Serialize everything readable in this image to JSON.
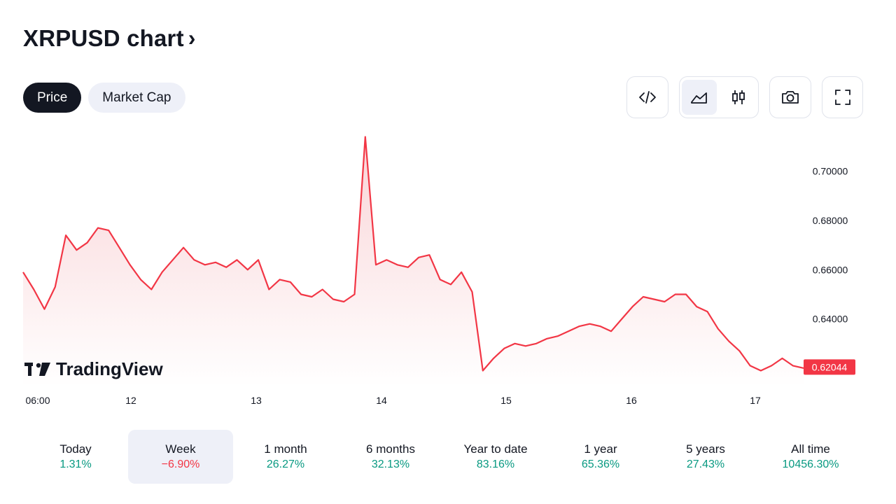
{
  "header": {
    "title": "XRPUSD chart",
    "chevron": "›"
  },
  "tabs": [
    {
      "label": "Price",
      "active": true
    },
    {
      "label": "Market Cap",
      "active": false
    }
  ],
  "toolbar": {
    "embed_icon": "code-icon",
    "area_icon": "area-chart-icon",
    "candles_icon": "candlestick-icon",
    "snapshot_icon": "camera-icon",
    "fullscreen_icon": "fullscreen-icon",
    "selected_style": "area"
  },
  "watermark": {
    "text": "TradingView"
  },
  "colors": {
    "line": "#f23645",
    "fill_top": "#f9d4d7",
    "fill_bottom": "#ffffff",
    "accent_up": "#089981",
    "accent_down": "#f23645"
  },
  "chart_data": {
    "type": "area",
    "symbol": "XRPUSD",
    "x_tick_labels": [
      "06:00",
      "12",
      "13",
      "14",
      "15",
      "16",
      "17"
    ],
    "y_tick_labels": [
      "0.70000",
      "0.68000",
      "0.66000",
      "0.64000"
    ],
    "ylim": [
      0.616,
      0.715
    ],
    "last_price": "0.62044",
    "grid": false,
    "series": [
      {
        "points": [
          [
            "06:00",
            0.659
          ],
          [
            "07:00",
            0.652
          ],
          [
            "08:00",
            0.644
          ],
          [
            "09:00",
            0.653
          ],
          [
            "10:00",
            0.674
          ],
          [
            "11:00",
            0.668
          ],
          [
            "12:00",
            0.671
          ],
          [
            "13:00",
            0.677
          ],
          [
            "14:00",
            0.676
          ],
          [
            "15:00",
            0.669
          ],
          [
            "16:00",
            0.662
          ],
          [
            "17:00",
            0.656
          ],
          [
            "18:00",
            0.652
          ],
          [
            "19:00",
            0.659
          ],
          [
            "20:00",
            0.664
          ],
          [
            "21:00",
            0.669
          ],
          [
            "22:00",
            0.664
          ],
          [
            "23:00",
            0.662
          ],
          [
            "00:00",
            0.663
          ],
          [
            "01:00",
            0.661
          ],
          [
            "02:00",
            0.664
          ],
          [
            "03:00",
            0.66
          ],
          [
            "04:00",
            0.664
          ],
          [
            "05:00",
            0.652
          ],
          [
            "06:00",
            0.656
          ],
          [
            "07:00",
            0.655
          ],
          [
            "08:00",
            0.65
          ],
          [
            "09:00",
            0.649
          ],
          [
            "10:00",
            0.652
          ],
          [
            "11:00",
            0.648
          ],
          [
            "12:00",
            0.647
          ],
          [
            "13:00",
            0.65
          ],
          [
            "14:00",
            0.714
          ],
          [
            "15:00",
            0.662
          ],
          [
            "16:00",
            0.664
          ],
          [
            "17:00",
            0.662
          ],
          [
            "18:00",
            0.661
          ],
          [
            "19:00",
            0.665
          ],
          [
            "20:00",
            0.666
          ],
          [
            "21:00",
            0.656
          ],
          [
            "22:00",
            0.654
          ],
          [
            "23:00",
            0.659
          ],
          [
            "00:00",
            0.651
          ],
          [
            "01:00",
            0.619
          ],
          [
            "02:00",
            0.624
          ],
          [
            "03:00",
            0.628
          ],
          [
            "04:00",
            0.63
          ],
          [
            "05:00",
            0.629
          ],
          [
            "06:00",
            0.63
          ],
          [
            "07:00",
            0.632
          ],
          [
            "08:00",
            0.633
          ],
          [
            "09:00",
            0.635
          ],
          [
            "10:00",
            0.637
          ],
          [
            "11:00",
            0.638
          ],
          [
            "12:00",
            0.637
          ],
          [
            "13:00",
            0.635
          ],
          [
            "14:00",
            0.64
          ],
          [
            "15:00",
            0.645
          ],
          [
            "16:00",
            0.649
          ],
          [
            "17:00",
            0.648
          ],
          [
            "18:00",
            0.647
          ],
          [
            "19:00",
            0.65
          ],
          [
            "20:00",
            0.65
          ],
          [
            "21:00",
            0.645
          ],
          [
            "22:00",
            0.643
          ],
          [
            "23:00",
            0.636
          ],
          [
            "00:00",
            0.631
          ],
          [
            "01:00",
            0.627
          ],
          [
            "02:00",
            0.621
          ],
          [
            "03:00",
            0.619
          ],
          [
            "04:00",
            0.621
          ],
          [
            "05:00",
            0.624
          ],
          [
            "06:00",
            0.621
          ],
          [
            "07:00",
            0.62
          ]
        ]
      }
    ]
  },
  "periods": [
    {
      "label": "Today",
      "change": "1.31%",
      "dir": "up",
      "selected": false
    },
    {
      "label": "Week",
      "change": "−6.90%",
      "dir": "down",
      "selected": true
    },
    {
      "label": "1 month",
      "change": "26.27%",
      "dir": "up",
      "selected": false
    },
    {
      "label": "6 months",
      "change": "32.13%",
      "dir": "up",
      "selected": false
    },
    {
      "label": "Year to date",
      "change": "83.16%",
      "dir": "up",
      "selected": false
    },
    {
      "label": "1 year",
      "change": "65.36%",
      "dir": "up",
      "selected": false
    },
    {
      "label": "5 years",
      "change": "27.43%",
      "dir": "up",
      "selected": false
    },
    {
      "label": "All time",
      "change": "10456.30%",
      "dir": "up",
      "selected": false
    }
  ]
}
